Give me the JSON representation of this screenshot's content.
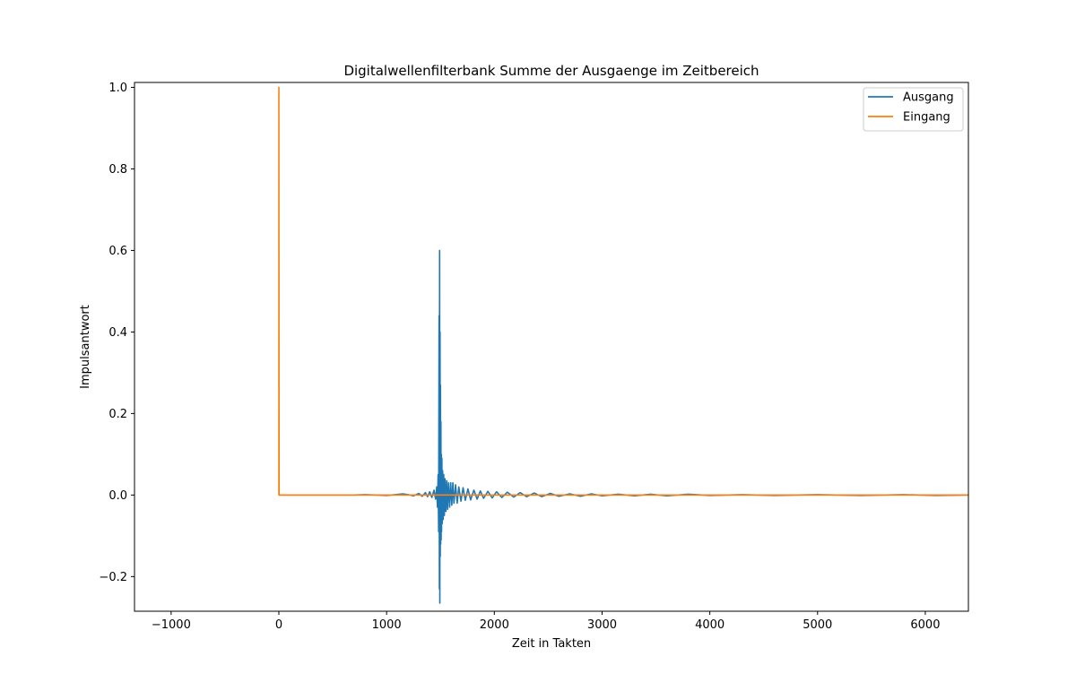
{
  "chart_data": {
    "type": "line",
    "title": "Digitalwellenfilterbank Summe der Ausgaenge im Zeitbereich",
    "xlabel": "Zeit in Takten",
    "ylabel": "Impulsantwort",
    "xlim": [
      -1340,
      6400
    ],
    "ylim": [
      -0.285,
      1.012
    ],
    "xticks": [
      -1000,
      0,
      1000,
      2000,
      3000,
      4000,
      5000,
      6000
    ],
    "xtick_labels": [
      "−1000",
      "0",
      "1000",
      "2000",
      "3000",
      "4000",
      "5000",
      "6000"
    ],
    "yticks": [
      -0.2,
      0.0,
      0.2,
      0.4,
      0.6,
      0.8,
      1.0
    ],
    "ytick_labels": [
      "−0.2",
      "0.0",
      "0.2",
      "0.4",
      "0.6",
      "0.8",
      "1.0"
    ],
    "grid": false,
    "legend_position": "top-right",
    "series": [
      {
        "name": "Ausgang",
        "color": "#1f77b4",
        "x": [
          0,
          700,
          800,
          900,
          1000,
          1080,
          1150,
          1200,
          1250,
          1300,
          1330,
          1360,
          1380,
          1400,
          1420,
          1440,
          1455,
          1465,
          1472,
          1478,
          1483,
          1487,
          1490,
          1492,
          1494,
          1496,
          1498,
          1500,
          1502,
          1504,
          1506,
          1508,
          1510,
          1513,
          1516,
          1520,
          1525,
          1530,
          1536,
          1542,
          1550,
          1558,
          1566,
          1575,
          1585,
          1595,
          1605,
          1615,
          1625,
          1640,
          1655,
          1670,
          1690,
          1710,
          1730,
          1755,
          1780,
          1810,
          1840,
          1870,
          1900,
          1940,
          1980,
          2020,
          2070,
          2120,
          2180,
          2240,
          2300,
          2370,
          2440,
          2520,
          2600,
          2700,
          2800,
          2900,
          3000,
          3150,
          3300,
          3450,
          3600,
          3800,
          4000,
          4300,
          4600,
          5000,
          5400,
          5800,
          6100,
          6400
        ],
        "values": [
          0.0,
          0.0,
          0.001,
          0.0,
          -0.001,
          0.001,
          0.003,
          0.001,
          -0.002,
          0.004,
          -0.003,
          0.006,
          -0.004,
          0.008,
          -0.006,
          0.012,
          -0.01,
          0.02,
          -0.03,
          0.05,
          -0.09,
          0.44,
          -0.23,
          0.6,
          -0.265,
          0.4,
          -0.15,
          0.27,
          -0.12,
          0.18,
          -0.11,
          0.1,
          -0.09,
          0.09,
          -0.07,
          0.06,
          -0.06,
          0.05,
          -0.05,
          0.04,
          -0.04,
          0.035,
          -0.035,
          0.03,
          -0.03,
          0.03,
          -0.025,
          0.03,
          -0.02,
          0.025,
          -0.02,
          0.02,
          -0.015,
          0.018,
          -0.013,
          0.015,
          -0.012,
          0.012,
          -0.01,
          0.01,
          -0.008,
          0.009,
          -0.007,
          0.008,
          -0.006,
          0.007,
          -0.005,
          0.006,
          -0.004,
          0.005,
          -0.004,
          0.004,
          -0.003,
          0.003,
          -0.003,
          0.003,
          -0.002,
          0.002,
          -0.002,
          0.002,
          -0.002,
          0.002,
          -0.001,
          0.001,
          -0.001,
          0.001,
          -0.001,
          0.001,
          -0.001,
          0.0
        ]
      },
      {
        "name": "Eingang",
        "color": "#ff7f0e",
        "x": [
          0,
          0,
          2,
          6400
        ],
        "values": [
          0.0,
          1.0,
          0.0,
          0.0
        ]
      }
    ]
  }
}
